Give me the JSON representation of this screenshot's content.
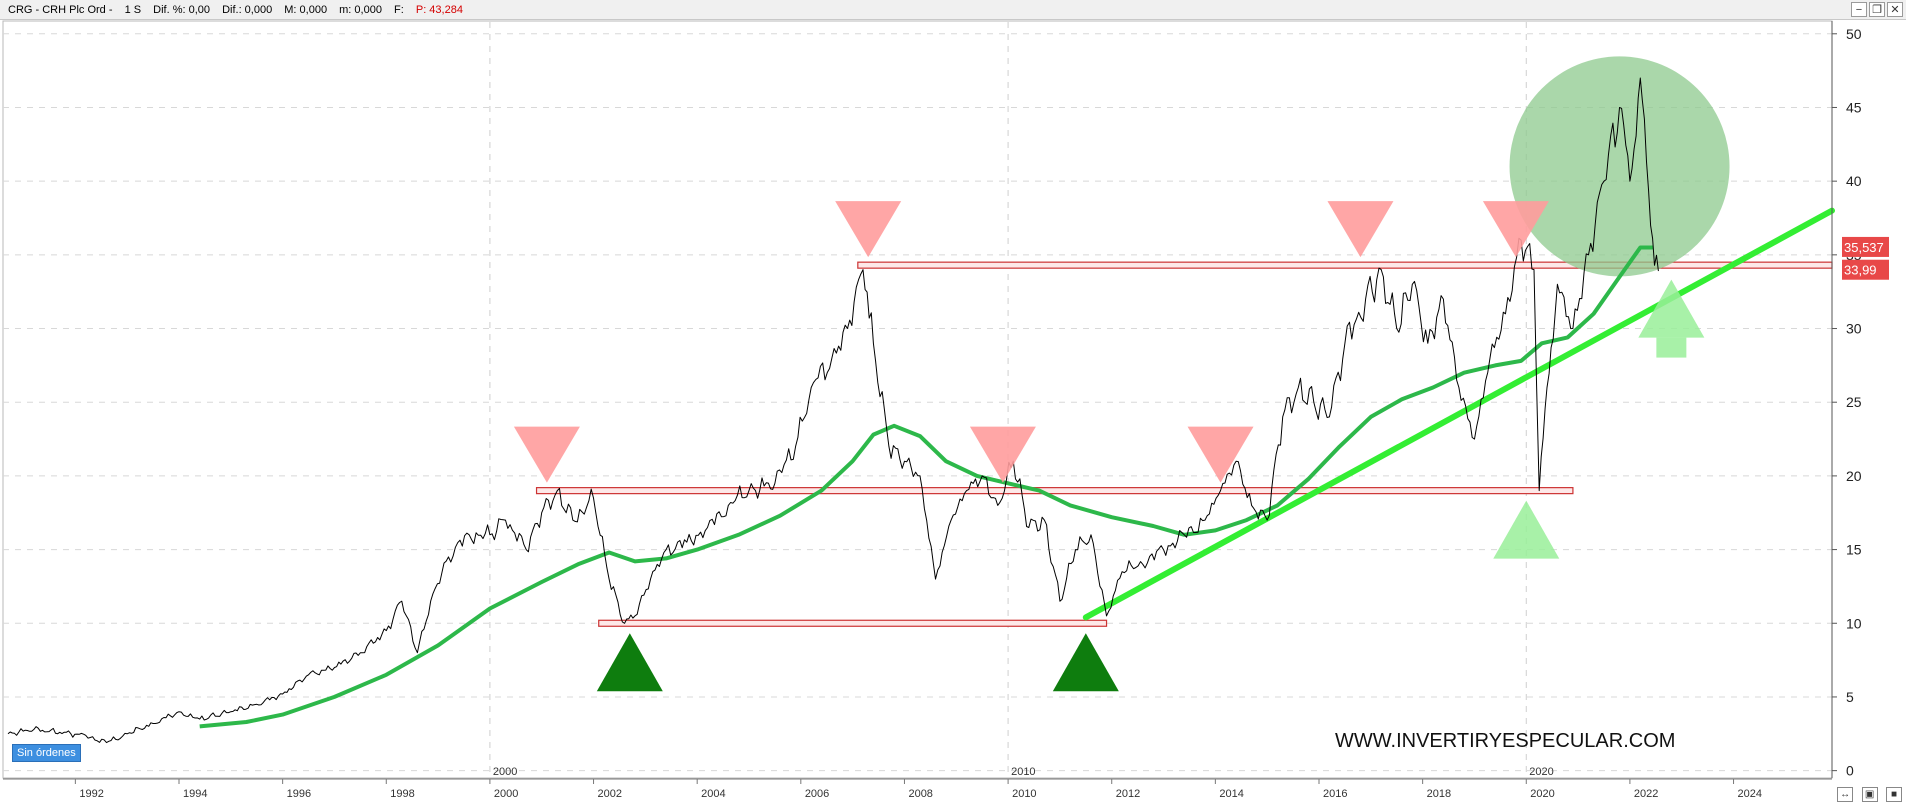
{
  "window": {
    "symbol": "CRG",
    "title": "CRG - CRH Plc Ord -",
    "timeframe": "1 S",
    "dif_pct": "Dif. %: 0,00",
    "dif": "Dif.: 0,000",
    "m_value": "M: 0,000",
    "m_small": "m: 0,000",
    "f_label": "F:",
    "p_value": "P: 43,284",
    "btn_minimize": "−",
    "btn_restore": "❐",
    "btn_close": "✕"
  },
  "orders_badge": "Sin órdenes",
  "watermark": "WWW.INVERTIRYESPECULAR.COM",
  "colors": {
    "price_line": "#000000",
    "ma_line": "#2db84a",
    "trend_line": "#33ee33",
    "resistance_marker": "#ff9c9c",
    "support_marker_dark": "#0e7d0e",
    "support_marker_light": "#99ee99",
    "range_band_border": "#cc3333",
    "range_band_fill": "#fde8e8",
    "price_label_bg": "#e84848",
    "circle_fill": "#8dc98d"
  },
  "chart_data": {
    "type": "line",
    "ylim": [
      -0.5,
      50.8
    ],
    "yticks": [
      0,
      5,
      10,
      15,
      20,
      25,
      30,
      35,
      40,
      45,
      50
    ],
    "x_range": [
      1990.7,
      2025.9
    ],
    "xticks": [
      "1992",
      "1994",
      "1996",
      "1998",
      "2000",
      "2002",
      "2004",
      "2006",
      "2008",
      "2010",
      "2012",
      "2014",
      "2016",
      "2018",
      "2020",
      "2022",
      "2024"
    ],
    "decade_markers": [
      "2000",
      "2010",
      "2020"
    ],
    "price_labels": [
      "35,537",
      "33,99"
    ],
    "price_label_values": [
      35.537,
      33.99
    ],
    "series": [
      {
        "values_x": [
          1990.7,
          1991.2,
          1991.7,
          1992.2,
          1992.6,
          1993.0,
          1993.5,
          1994.0,
          1994.4,
          1995.0,
          1995.5,
          1996.0,
          1996.5,
          1997.0,
          1997.5,
          1998.0,
          1998.3,
          1998.6,
          1998.9,
          1999.2,
          1999.6,
          2000.0,
          2000.3,
          2000.7,
          2001.0,
          2001.3,
          2001.6,
          2002.0,
          2002.3,
          2002.6,
          2002.8,
          2003.1,
          2003.4,
          2003.8,
          2004.2,
          2004.6,
          2005.0,
          2005.5,
          2005.9,
          2006.2,
          2006.6,
          2006.9,
          2007.2,
          2007.4,
          2007.7,
          2008.0,
          2008.3,
          2008.6,
          2008.9,
          2009.2,
          2009.5,
          2009.8,
          2010.1,
          2010.4,
          2010.7,
          2011.0,
          2011.3,
          2011.6,
          2011.9,
          2012.2,
          2012.6,
          2013.0,
          2013.4,
          2013.8,
          2014.1,
          2014.4,
          2014.7,
          2015.0,
          2015.3,
          2015.6,
          2015.9,
          2016.2,
          2016.5,
          2016.9,
          2017.2,
          2017.5,
          2017.8,
          2018.1,
          2018.4,
          2018.7,
          2019.0,
          2019.3,
          2019.6,
          2019.9,
          2020.15,
          2020.25,
          2020.4,
          2020.6,
          2020.9,
          2021.2,
          2021.5,
          2021.8,
          2022.0,
          2022.2,
          2022.4,
          2022.55
        ],
        "values_y": [
          2.5,
          2.8,
          2.6,
          2.4,
          1.9,
          2.5,
          3.2,
          4.0,
          3.5,
          4.0,
          4.5,
          5.2,
          6.5,
          7.0,
          8.0,
          9.5,
          11.5,
          8.0,
          12.0,
          14.5,
          16.0,
          16.0,
          17.0,
          15.0,
          17.5,
          19.0,
          17.0,
          18.5,
          13.0,
          10.0,
          10.5,
          13.0,
          15.0,
          15.5,
          16.5,
          18.0,
          19.0,
          19.5,
          22.0,
          26.0,
          28.0,
          30.0,
          34.0,
          29.0,
          22.0,
          21.0,
          20.0,
          13.0,
          17.0,
          19.0,
          20.0,
          18.0,
          21.0,
          16.5,
          17.0,
          11.5,
          15.0,
          16.0,
          10.5,
          13.5,
          14.0,
          15.0,
          16.0,
          17.0,
          19.0,
          21.0,
          18.0,
          17.0,
          24.0,
          26.0,
          25.0,
          24.0,
          29.0,
          32.0,
          34.0,
          30.0,
          33.0,
          29.0,
          32.0,
          26.0,
          22.5,
          28.0,
          31.0,
          36.0,
          34.0,
          19.0,
          26.0,
          33.0,
          30.0,
          35.0,
          40.0,
          45.0,
          40.0,
          47.0,
          37.0,
          33.9
        ]
      },
      {
        "values_x": [
          1994.4,
          1995.3,
          1996.0,
          1997.0,
          1998.0,
          1999.0,
          2000.0,
          2001.0,
          2001.7,
          2002.3,
          2002.8,
          2003.4,
          2004.0,
          2004.8,
          2005.6,
          2006.4,
          2007.0,
          2007.4,
          2007.8,
          2008.3,
          2008.8,
          2009.4,
          2010.0,
          2010.6,
          2011.2,
          2012.0,
          2012.8,
          2013.4,
          2014.0,
          2014.6,
          2015.2,
          2015.8,
          2016.4,
          2017.0,
          2017.6,
          2018.2,
          2018.8,
          2019.4,
          2019.9,
          2020.3,
          2020.8,
          2021.3,
          2021.8,
          2022.2,
          2022.45
        ],
        "values_y": [
          3.0,
          3.3,
          3.8,
          5.0,
          6.5,
          8.5,
          11.0,
          12.8,
          14.0,
          14.8,
          14.2,
          14.4,
          15.0,
          16.0,
          17.3,
          19.0,
          21.0,
          22.8,
          23.4,
          22.7,
          21.0,
          20.0,
          19.5,
          19.0,
          18.0,
          17.2,
          16.6,
          16.0,
          16.3,
          17.0,
          18.0,
          19.8,
          22.0,
          24.0,
          25.2,
          26.0,
          27.0,
          27.5,
          27.8,
          29.0,
          29.4,
          31.0,
          33.5,
          35.5,
          35.5
        ]
      }
    ],
    "trend_line": {
      "x": [
        2011.5,
        2025.9
      ],
      "y": [
        10.4,
        38.0
      ]
    },
    "horizontal_levels": [
      {
        "x_start": 2002.1,
        "x_end": 2011.9,
        "y": 10.0
      },
      {
        "x_start": 2000.9,
        "x_end": 2020.9,
        "y": 19.0
      },
      {
        "x_start": 2007.1,
        "x_end": 2025.9,
        "y": 34.3
      }
    ],
    "resistance_markers": [
      {
        "x": 2001.1,
        "y": 19.0
      },
      {
        "x": 2007.3,
        "y": 34.3
      },
      {
        "x": 2009.9,
        "y": 19.0
      },
      {
        "x": 2014.1,
        "y": 19.0
      },
      {
        "x": 2016.8,
        "y": 34.3
      },
      {
        "x": 2019.8,
        "y": 34.3
      }
    ],
    "support_markers": [
      {
        "x": 2002.7,
        "y": 10.0,
        "tone": "dark"
      },
      {
        "x": 2011.5,
        "y": 10.0,
        "tone": "dark"
      },
      {
        "x": 2020.0,
        "y": 19.0,
        "tone": "light"
      },
      {
        "x": 2022.8,
        "y": 34.0,
        "tone": "light"
      }
    ],
    "highlight_circle": {
      "x": 2021.8,
      "y": 41.0
    }
  }
}
